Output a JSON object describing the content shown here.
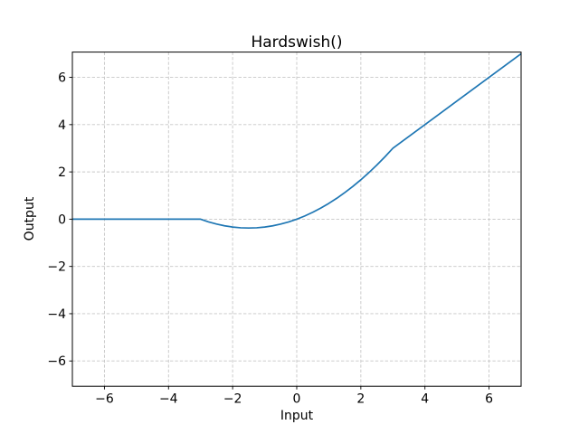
{
  "chart_data": {
    "type": "line",
    "title": "Hardswish()",
    "xlabel": "Input",
    "ylabel": "Output",
    "xlim": [
      -7,
      7
    ],
    "ylim": [
      -7.07,
      7.07
    ],
    "x_ticks": [
      -6,
      -4,
      -2,
      0,
      2,
      4,
      6
    ],
    "x_tick_labels": [
      "−6",
      "−4",
      "−2",
      "0",
      "2",
      "4",
      "6"
    ],
    "y_ticks": [
      -6,
      -4,
      -2,
      0,
      2,
      4,
      6
    ],
    "y_tick_labels": [
      "−6",
      "−4",
      "−2",
      "0",
      "2",
      "4",
      "6"
    ],
    "grid": true,
    "grid_style": "dashed",
    "grid_color": "#c6c6c6",
    "line_color": "#1f77b4",
    "legend": "none",
    "series": [
      {
        "name": "Hardswish",
        "x": [
          -7,
          -3,
          -2.75,
          -2.5,
          -2.25,
          -2,
          -1.75,
          -1.5,
          -1.25,
          -1,
          -0.75,
          -0.5,
          -0.25,
          0,
          0.25,
          0.5,
          0.75,
          1,
          1.25,
          1.5,
          1.75,
          2,
          2.25,
          2.5,
          2.75,
          3,
          7
        ],
        "y": [
          0,
          0,
          -0.1146,
          -0.2083,
          -0.2812,
          -0.3333,
          -0.3646,
          -0.375,
          -0.3646,
          -0.3333,
          -0.2812,
          -0.2083,
          -0.1146,
          0,
          0.1354,
          0.2917,
          0.4688,
          0.6667,
          0.8854,
          1.125,
          1.3854,
          1.6667,
          1.9688,
          2.2917,
          2.6354,
          3,
          7
        ]
      }
    ]
  }
}
